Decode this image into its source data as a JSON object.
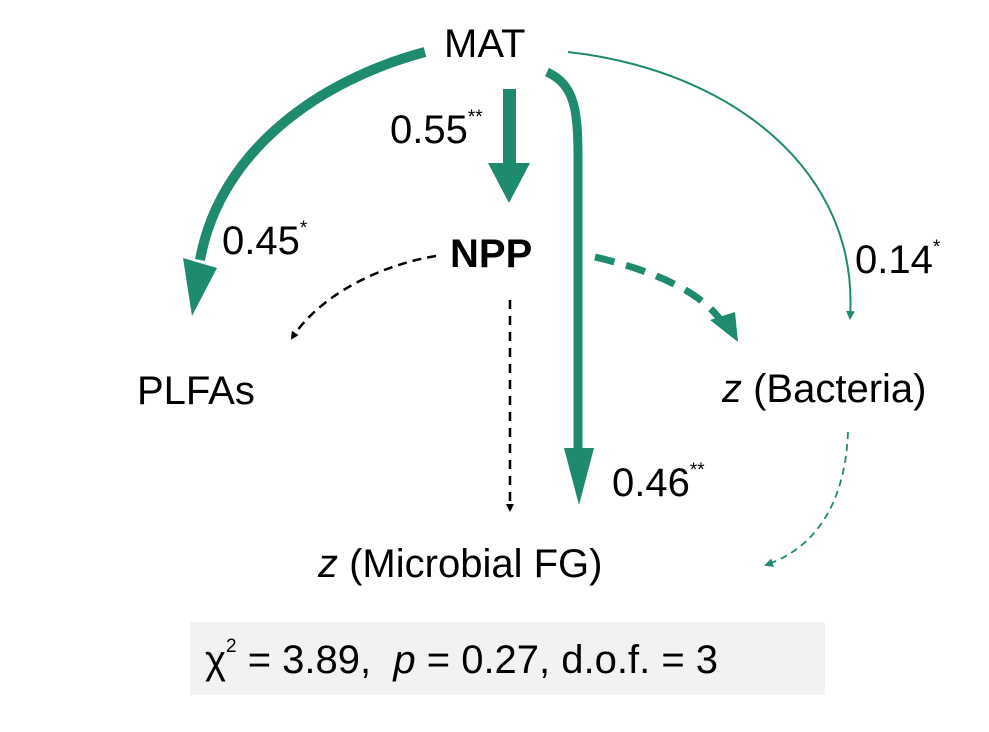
{
  "nodes": {
    "mat": "MAT",
    "npp": "NPP",
    "plfas": "PLFAs",
    "bacteria_z": "z",
    "bacteria": " (Bacteria)",
    "microbial_z": "z",
    "microbial": " (Microbial FG)"
  },
  "paths": {
    "mat_npp": {
      "value": "0.55",
      "sig": "**"
    },
    "mat_plfas": {
      "value": "0.45",
      "sig": "*"
    },
    "mat_bacteria": {
      "value": "0.14",
      "sig": "*"
    },
    "mat_microbial": {
      "value": "0.46",
      "sig": "**"
    }
  },
  "stats": {
    "chi": "χ",
    "chi_sup": "2",
    "chi_value": " = 3.89,  ",
    "p": "p",
    "p_value": " = 0.27, d.o.f. = 3"
  },
  "colors": {
    "significant": "#1e8a6e",
    "nonsignificant": "#000000",
    "stats_bg": "#f2f2f2"
  }
}
